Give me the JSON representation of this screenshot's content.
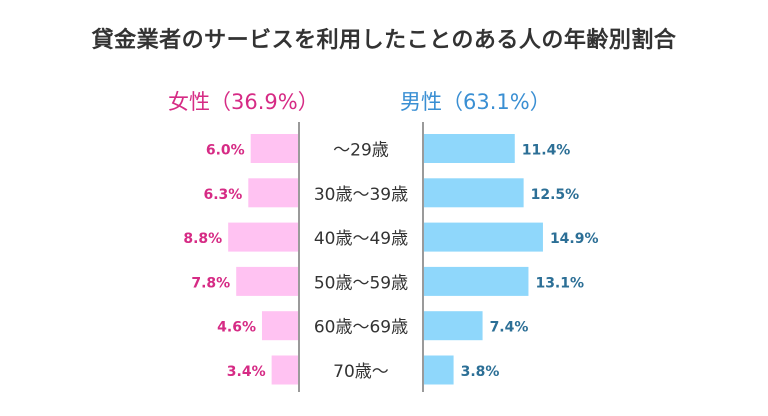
{
  "title": "貸金業者のサービスを利用したことのある人の年齢別割合",
  "colors": {
    "female_bar": "#ffc2f2",
    "male_bar": "#8fd7fb",
    "female_text": "#d62b85",
    "male_text": "#2c6f96",
    "divider": "#9a9a9a"
  },
  "chart_data": {
    "type": "bar",
    "title": "貸金業者のサービスを利用したことのある人の年齢別割合",
    "categories": [
      "～29歳",
      "30歳～39歳",
      "40歳～49歳",
      "50歳～59歳",
      "60歳～69歳",
      "70歳～"
    ],
    "series": [
      {
        "name": "女性",
        "total_label": "女性（36.9%）",
        "values": [
          6.0,
          6.3,
          8.8,
          7.8,
          4.6,
          3.4
        ],
        "labels": [
          "6.0%",
          "6.3%",
          "8.8%",
          "7.8%",
          "4.6%",
          "3.4%"
        ]
      },
      {
        "name": "男性",
        "total_label": "男性（63.1%）",
        "values": [
          11.4,
          12.5,
          14.9,
          13.1,
          7.4,
          3.8
        ],
        "labels": [
          "11.4%",
          "12.5%",
          "14.9%",
          "13.1%",
          "7.4%",
          "3.8%"
        ]
      }
    ],
    "orientation": "horizontal-butterfly",
    "legend": "top"
  }
}
